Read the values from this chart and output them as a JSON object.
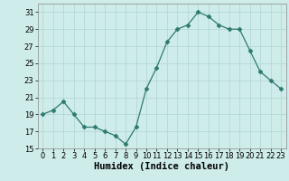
{
  "x": [
    0,
    1,
    2,
    3,
    4,
    5,
    6,
    7,
    8,
    9,
    10,
    11,
    12,
    13,
    14,
    15,
    16,
    17,
    18,
    19,
    20,
    21,
    22,
    23
  ],
  "y": [
    19,
    19.5,
    20.5,
    19,
    17.5,
    17.5,
    17,
    16.5,
    15.5,
    17.5,
    22,
    24.5,
    27.5,
    29,
    29.5,
    31,
    30.5,
    29.5,
    29,
    29,
    26.5,
    24,
    23,
    22
  ],
  "xlabel": "Humidex (Indice chaleur)",
  "xlim": [
    -0.5,
    23.5
  ],
  "ylim": [
    15,
    32
  ],
  "yticks": [
    15,
    17,
    19,
    21,
    23,
    25,
    27,
    29,
    31
  ],
  "xticks": [
    0,
    1,
    2,
    3,
    4,
    5,
    6,
    7,
    8,
    9,
    10,
    11,
    12,
    13,
    14,
    15,
    16,
    17,
    18,
    19,
    20,
    21,
    22,
    23
  ],
  "line_color": "#2d7a6e",
  "marker": "D",
  "marker_size": 2.5,
  "bg_color": "#ceecea",
  "grid_color": "#b0d4d0",
  "tick_fontsize": 6,
  "xlabel_fontsize": 7.5
}
